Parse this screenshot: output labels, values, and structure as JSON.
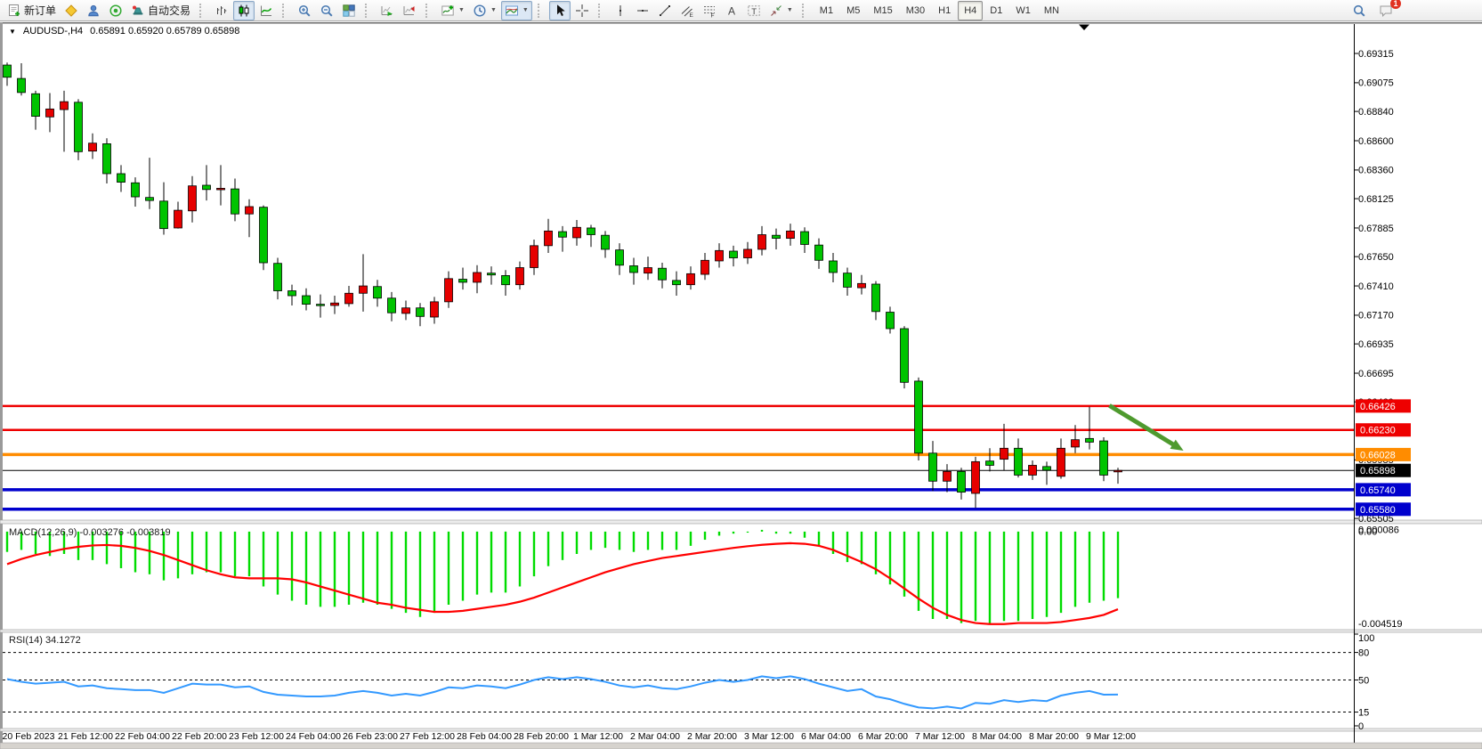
{
  "toolbar": {
    "groups": [
      {
        "items": [
          {
            "name": "new-order-button",
            "icon": "new-order",
            "label": "新订单",
            "pressed": false
          },
          {
            "name": "market-watch-button",
            "icon": "yellow-diamond",
            "pressed": false
          },
          {
            "name": "terminal-button",
            "icon": "terminal-user",
            "pressed": false
          },
          {
            "name": "news-service-button",
            "icon": "radar",
            "pressed": false
          },
          {
            "name": "auto-trading-button",
            "icon": "autotrade",
            "label": "自动交易",
            "pressed": false
          }
        ]
      },
      {
        "items": [
          {
            "name": "bar-chart-button",
            "icon": "bars",
            "pressed": false
          },
          {
            "name": "candlestick-chart-button",
            "icon": "candles",
            "pressed": true
          },
          {
            "name": "line-chart-button",
            "icon": "linechart",
            "pressed": false
          }
        ]
      },
      {
        "items": [
          {
            "name": "zoom-in-button",
            "icon": "zoom-in",
            "pressed": false
          },
          {
            "name": "zoom-out-button",
            "icon": "zoom-out",
            "pressed": false
          },
          {
            "name": "tile-windows-button",
            "icon": "tiles",
            "pressed": false
          }
        ]
      },
      {
        "items": [
          {
            "name": "auto-scroll-button",
            "icon": "auto-scroll",
            "pressed": false
          },
          {
            "name": "chart-shift-button",
            "icon": "chart-shift",
            "pressed": false
          }
        ]
      },
      {
        "items": [
          {
            "name": "indicators-button",
            "icon": "indicators",
            "dropdown": true,
            "pressed": false
          },
          {
            "name": "periods-button",
            "icon": "clock",
            "dropdown": true,
            "pressed": false
          },
          {
            "name": "templates-button",
            "icon": "template",
            "dropdown": true,
            "pressed": true
          }
        ]
      },
      {
        "items": [
          {
            "name": "cursor-button",
            "icon": "cursor",
            "pressed": true
          },
          {
            "name": "crosshair-button",
            "icon": "crosshair",
            "pressed": false
          }
        ]
      },
      {
        "items": [
          {
            "name": "vertical-line-button",
            "icon": "vline",
            "pressed": false
          },
          {
            "name": "horizontal-line-button",
            "icon": "hline",
            "pressed": false
          },
          {
            "name": "trendline-button",
            "icon": "trendline",
            "pressed": false
          },
          {
            "name": "equidistant-channel-button",
            "icon": "channel",
            "pressed": false
          },
          {
            "name": "fibonacci-button",
            "icon": "fibo",
            "pressed": false
          },
          {
            "name": "text-button",
            "icon": "text-a",
            "pressed": false
          },
          {
            "name": "text-label-button",
            "icon": "label-t",
            "pressed": false
          },
          {
            "name": "arrows-button",
            "icon": "shapes",
            "dropdown": true,
            "pressed": false
          }
        ]
      },
      {
        "timeframes": true,
        "items": [
          {
            "name": "timeframe-m1",
            "label": "M1",
            "pressed": false
          },
          {
            "name": "timeframe-m5",
            "label": "M5",
            "pressed": false
          },
          {
            "name": "timeframe-m15",
            "label": "M15",
            "pressed": false
          },
          {
            "name": "timeframe-m30",
            "label": "M30",
            "pressed": false
          },
          {
            "name": "timeframe-h1",
            "label": "H1",
            "pressed": false
          },
          {
            "name": "timeframe-h4",
            "label": "H4",
            "pressed": true
          },
          {
            "name": "timeframe-d1",
            "label": "D1",
            "pressed": false
          },
          {
            "name": "timeframe-w1",
            "label": "W1",
            "pressed": false
          },
          {
            "name": "timeframe-mn",
            "label": "MN",
            "pressed": false
          }
        ]
      }
    ],
    "right_items": [
      {
        "name": "search-button",
        "icon": "search"
      },
      {
        "name": "notifications-button",
        "icon": "chat",
        "badge": "1"
      }
    ]
  },
  "chart": {
    "header": {
      "collapse_glyph": "▼",
      "symbol_period": "AUDUSD-,H4",
      "ohlc_text": "0.65891 0.65920 0.65789 0.65898"
    }
  },
  "chart_data": [
    {
      "type": "candlestick",
      "title": "AUDUSD-,H4",
      "timeframe": "H4",
      "current_bar": {
        "open": 0.65891,
        "high": 0.6592,
        "low": 0.65789,
        "close": 0.65898
      },
      "ylim": [
        0.65491,
        0.69556
      ],
      "grid": false,
      "y_ticks": [
        0.69315,
        0.69075,
        0.6884,
        0.686,
        0.6836,
        0.68125,
        0.67885,
        0.6765,
        0.6741,
        0.6717,
        0.66935,
        0.66695,
        0.6646,
        0.65985,
        0.65505
      ],
      "x_labels": [
        "20 Feb 2023",
        "21 Feb 12:00",
        "22 Feb 04:00",
        "22 Feb 20:00",
        "23 Feb 12:00",
        "24 Feb 04:00",
        "26 Feb 23:00",
        "27 Feb 12:00",
        "28 Feb 04:00",
        "28 Feb 20:00",
        "1 Mar 12:00",
        "2 Mar 04:00",
        "2 Mar 20:00",
        "3 Mar 12:00",
        "6 Mar 04:00",
        "6 Mar 20:00",
        "7 Mar 12:00",
        "8 Mar 04:00",
        "8 Mar 20:00",
        "9 Mar 12:00"
      ],
      "ohlc": [
        [
          0.6922,
          0.6924,
          0.6905,
          0.6912
        ],
        [
          0.6911,
          0.69235,
          0.6897,
          0.68995
        ],
        [
          0.68985,
          0.6901,
          0.6869,
          0.688
        ],
        [
          0.68795,
          0.6899,
          0.6867,
          0.6886
        ],
        [
          0.68855,
          0.6901,
          0.6851,
          0.6892
        ],
        [
          0.68915,
          0.6894,
          0.6844,
          0.6851
        ],
        [
          0.68515,
          0.6866,
          0.6845,
          0.6858
        ],
        [
          0.68575,
          0.6862,
          0.6825,
          0.6833
        ],
        [
          0.6833,
          0.684,
          0.6818,
          0.6826
        ],
        [
          0.68255,
          0.683,
          0.6806,
          0.6814
        ],
        [
          0.68135,
          0.6846,
          0.6804,
          0.6811
        ],
        [
          0.68105,
          0.6826,
          0.6783,
          0.6788
        ],
        [
          0.67885,
          0.681,
          0.6788,
          0.6803
        ],
        [
          0.68025,
          0.6831,
          0.6793,
          0.6823
        ],
        [
          0.68235,
          0.684,
          0.6811,
          0.682
        ],
        [
          0.682,
          0.684,
          0.6807,
          0.6821
        ],
        [
          0.68205,
          0.6829,
          0.6794,
          0.68
        ],
        [
          0.68,
          0.6812,
          0.6781,
          0.6806
        ],
        [
          0.68055,
          0.6807,
          0.6754,
          0.676
        ],
        [
          0.67595,
          0.6764,
          0.673,
          0.6737
        ],
        [
          0.6737,
          0.6742,
          0.6725,
          0.6733
        ],
        [
          0.6733,
          0.6739,
          0.6721,
          0.6726
        ],
        [
          0.6726,
          0.6734,
          0.6715,
          0.6725
        ],
        [
          0.6725,
          0.6733,
          0.6718,
          0.6727
        ],
        [
          0.67265,
          0.6741,
          0.6724,
          0.6735
        ],
        [
          0.6735,
          0.6767,
          0.672,
          0.6741
        ],
        [
          0.67405,
          0.6746,
          0.6724,
          0.6731
        ],
        [
          0.6731,
          0.6736,
          0.6712,
          0.6719
        ],
        [
          0.67185,
          0.6729,
          0.6713,
          0.6723
        ],
        [
          0.6723,
          0.6727,
          0.6708,
          0.6716
        ],
        [
          0.67155,
          0.6732,
          0.671,
          0.6728
        ],
        [
          0.6728,
          0.6753,
          0.6723,
          0.6747
        ],
        [
          0.67465,
          0.6756,
          0.6738,
          0.6744
        ],
        [
          0.6744,
          0.6758,
          0.6735,
          0.6752
        ],
        [
          0.67515,
          0.6757,
          0.6742,
          0.675
        ],
        [
          0.67495,
          0.6754,
          0.6733,
          0.6742
        ],
        [
          0.6742,
          0.6761,
          0.6738,
          0.6756
        ],
        [
          0.6756,
          0.6779,
          0.675,
          0.6774
        ],
        [
          0.6774,
          0.6796,
          0.6768,
          0.6786
        ],
        [
          0.67855,
          0.679,
          0.6769,
          0.6781
        ],
        [
          0.67805,
          0.6795,
          0.6774,
          0.6789
        ],
        [
          0.67885,
          0.6791,
          0.6773,
          0.6783
        ],
        [
          0.67825,
          0.6786,
          0.6764,
          0.6771
        ],
        [
          0.67705,
          0.6776,
          0.675,
          0.6758
        ],
        [
          0.67575,
          0.6764,
          0.6742,
          0.6752
        ],
        [
          0.67515,
          0.6765,
          0.6746,
          0.6756
        ],
        [
          0.67555,
          0.676,
          0.6739,
          0.6746
        ],
        [
          0.67455,
          0.6753,
          0.6733,
          0.6742
        ],
        [
          0.6742,
          0.6757,
          0.6738,
          0.6751
        ],
        [
          0.67505,
          0.6768,
          0.6746,
          0.6762
        ],
        [
          0.67615,
          0.6776,
          0.6756,
          0.677
        ],
        [
          0.67695,
          0.6774,
          0.6757,
          0.6764
        ],
        [
          0.6764,
          0.6777,
          0.6759,
          0.6771
        ],
        [
          0.6771,
          0.679,
          0.6766,
          0.6783
        ],
        [
          0.67825,
          0.6788,
          0.6771,
          0.678
        ],
        [
          0.678,
          0.6792,
          0.6774,
          0.6786
        ],
        [
          0.67855,
          0.6789,
          0.6768,
          0.6775
        ],
        [
          0.67745,
          0.678,
          0.6755,
          0.6762
        ],
        [
          0.67615,
          0.6768,
          0.6744,
          0.6752
        ],
        [
          0.67515,
          0.6756,
          0.6733,
          0.674
        ],
        [
          0.67395,
          0.675,
          0.6734,
          0.6743
        ],
        [
          0.67425,
          0.6745,
          0.6713,
          0.672
        ],
        [
          0.67195,
          0.6724,
          0.6702,
          0.6706
        ],
        [
          0.6706,
          0.6708,
          0.6657,
          0.6662
        ],
        [
          0.6663,
          0.6666,
          0.6598,
          0.6604
        ],
        [
          0.6604,
          0.6614,
          0.6573,
          0.6581
        ],
        [
          0.6581,
          0.6595,
          0.6572,
          0.6589
        ],
        [
          0.6589,
          0.6592,
          0.6566,
          0.6572
        ],
        [
          0.6571,
          0.6601,
          0.6559,
          0.6597
        ],
        [
          0.65975,
          0.6608,
          0.6589,
          0.6594
        ],
        [
          0.6599,
          0.6628,
          0.659,
          0.6608
        ],
        [
          0.6608,
          0.6616,
          0.6584,
          0.6586
        ],
        [
          0.6586,
          0.6598,
          0.6582,
          0.6594
        ],
        [
          0.6593,
          0.6597,
          0.6578,
          0.659
        ],
        [
          0.6585,
          0.6616,
          0.6583,
          0.6608
        ],
        [
          0.6609,
          0.6627,
          0.6604,
          0.6615
        ],
        [
          0.6616,
          0.6642,
          0.6607,
          0.6613
        ],
        [
          0.6614,
          0.6617,
          0.6581,
          0.6586
        ],
        [
          0.65891,
          0.6592,
          0.65789,
          0.65898
        ]
      ],
      "hlines": [
        {
          "price": 0.66426,
          "label": "0.66426",
          "color": "#ee0000",
          "width": 2.5
        },
        {
          "price": 0.6623,
          "label": "0.66230",
          "color": "#ee0000",
          "width": 2.5
        },
        {
          "price": 0.66028,
          "label": "0.66028",
          "color": "#ff8c00",
          "width": 3.5
        },
        {
          "price": 0.6574,
          "label": "0.65740",
          "color": "#0000cd",
          "width": 3.5
        },
        {
          "price": 0.6558,
          "label": "0.65580",
          "color": "#0000cd",
          "width": 3.5
        }
      ],
      "bid_line": {
        "price": 0.65898,
        "label": "0.65898",
        "color": "#000000",
        "width": 1
      },
      "arrow": {
        "from_index": 77.4,
        "from_price": 0.6643,
        "to_index": 82.6,
        "to_price": 0.6606,
        "color": "#4e9a2e"
      },
      "colors": {
        "bull": "#e60000",
        "bear": "#00c400",
        "wick": "#000000",
        "background": "#ffffff"
      }
    },
    {
      "type": "bar",
      "name": "MACD",
      "label": "MACD(12,26,9) -0.003276 -0.003819",
      "params": "12,26,9",
      "macd_value": -0.003276,
      "signal_value": -0.003819,
      "ylim": [
        -0.004825,
        0.00039
      ],
      "axis_labels": [
        {
          "text": "0.000086",
          "value": 8.6e-05
        },
        {
          "text": "0.00",
          "value": 0.0
        },
        {
          "text": "-0.004519",
          "value": -0.004519
        }
      ],
      "hist": [
        -0.001,
        -0.0009,
        -0.0011,
        -0.0012,
        -0.0011,
        -0.0014,
        -0.0014,
        -0.0016,
        -0.0018,
        -0.002,
        -0.0021,
        -0.0024,
        -0.0023,
        -0.0021,
        -0.002,
        -0.002,
        -0.0022,
        -0.0022,
        -0.0027,
        -0.0031,
        -0.0034,
        -0.0036,
        -0.0037,
        -0.0037,
        -0.0036,
        -0.0035,
        -0.0036,
        -0.0038,
        -0.004,
        -0.0042,
        -0.004,
        -0.0036,
        -0.0034,
        -0.0031,
        -0.003,
        -0.003,
        -0.0027,
        -0.0022,
        -0.0017,
        -0.0014,
        -0.0011,
        -0.0009,
        -0.0008,
        -0.0009,
        -0.001,
        -0.0009,
        -0.0009,
        -0.0009,
        -0.0007,
        -0.0004,
        -0.0002,
        -0.0001,
        -5e-05,
        8.6e-05,
        -0.0001,
        -0.0001,
        -0.0003,
        -0.0007,
        -0.0011,
        -0.0015,
        -0.0016,
        -0.0021,
        -0.0026,
        -0.0032,
        -0.0039,
        -0.0043,
        -0.0043,
        -0.0045,
        -0.0044,
        -0.004519,
        -0.0044,
        -0.0044,
        -0.0043,
        -0.0042,
        -0.004,
        -0.0037,
        -0.0035,
        -0.0034,
        -0.003276
      ],
      "signal": [
        -0.0016,
        -0.00135,
        -0.00115,
        -0.001,
        -0.00085,
        -0.00075,
        -0.00068,
        -0.00066,
        -0.0007,
        -0.0008,
        -0.00095,
        -0.00115,
        -0.0014,
        -0.00165,
        -0.0019,
        -0.0021,
        -0.00225,
        -0.0023,
        -0.0023,
        -0.0023,
        -0.00235,
        -0.0025,
        -0.0027,
        -0.0029,
        -0.0031,
        -0.0033,
        -0.0035,
        -0.0036,
        -0.00375,
        -0.00385,
        -0.00395,
        -0.00395,
        -0.0039,
        -0.0038,
        -0.0037,
        -0.0036,
        -0.00345,
        -0.00325,
        -0.003,
        -0.00275,
        -0.0025,
        -0.00225,
        -0.002,
        -0.0018,
        -0.0016,
        -0.00145,
        -0.0013,
        -0.0012,
        -0.0011,
        -0.001,
        -0.0009,
        -0.0008,
        -0.00072,
        -0.00065,
        -0.0006,
        -0.00057,
        -0.0006,
        -0.0007,
        -0.0009,
        -0.0012,
        -0.0015,
        -0.00185,
        -0.0023,
        -0.0028,
        -0.0033,
        -0.00375,
        -0.0041,
        -0.00435,
        -0.0045,
        -0.00455,
        -0.00455,
        -0.0045,
        -0.0045,
        -0.0045,
        -0.00445,
        -0.00435,
        -0.00425,
        -0.0041,
        -0.003819
      ],
      "colors": {
        "hist": "#00dc00",
        "signal": "#ff0000"
      }
    },
    {
      "type": "line",
      "name": "RSI",
      "label": "RSI(14) 34.1272",
      "period": 14,
      "value": 34.1272,
      "ylim": [
        0,
        100
      ],
      "levels": [
        80,
        50,
        15
      ],
      "axis_labels": [
        "100",
        "80",
        "50",
        "15",
        "0"
      ],
      "values": [
        51,
        48,
        46,
        47,
        48,
        43,
        44,
        41,
        40,
        39,
        39,
        36,
        41,
        46,
        45,
        45,
        42,
        43,
        37,
        34,
        33,
        32,
        32,
        33,
        36,
        38,
        36,
        33,
        35,
        33,
        37,
        42,
        41,
        44,
        43,
        41,
        45,
        50,
        53,
        51,
        53,
        51,
        48,
        44,
        42,
        44,
        41,
        40,
        43,
        47,
        50,
        48,
        50,
        54,
        52,
        54,
        51,
        46,
        42,
        38,
        40,
        32,
        29,
        24,
        20,
        19,
        21,
        19,
        25,
        24,
        28,
        26,
        28,
        27,
        33,
        36,
        38,
        34,
        34.13
      ],
      "colors": {
        "line": "#3399ff",
        "levels": "#000000"
      }
    }
  ]
}
